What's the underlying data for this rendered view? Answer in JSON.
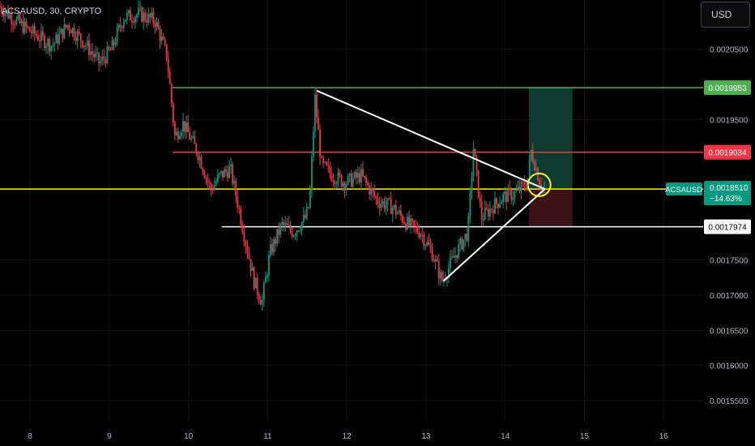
{
  "header": {
    "symbol_title": "ACSAUSD, 30, CRYPTO",
    "currency": "USD"
  },
  "chart_data": {
    "type": "candlestick",
    "symbol": "ACSAUSD",
    "interval": "30",
    "exchange": "CRYPTO",
    "ylim": [
      0.00152,
      0.00212
    ],
    "y_ticks": [
      "0.0020500",
      "0.0019500",
      "0.0017500",
      "0.0017000",
      "0.0016500",
      "0.0016000",
      "0.0015500"
    ],
    "x_ticks": [
      "8",
      "9",
      "10",
      "11",
      "12",
      "13",
      "14",
      "15",
      "16"
    ],
    "x_tick_values": [
      8,
      9,
      10,
      11,
      12,
      13,
      14,
      15,
      16
    ],
    "xlim": [
      7.62,
      16.5
    ],
    "price_path": [
      [
        7.62,
        0.002112
      ],
      [
        7.9,
        0.002085
      ],
      [
        8.1,
        0.00207
      ],
      [
        8.3,
        0.002055
      ],
      [
        8.5,
        0.002085
      ],
      [
        8.7,
        0.00206
      ],
      [
        8.9,
        0.00203
      ],
      [
        9.05,
        0.00205
      ],
      [
        9.2,
        0.002095
      ],
      [
        9.4,
        0.0021
      ],
      [
        9.6,
        0.00209
      ],
      [
        9.75,
        0.00204
      ],
      [
        9.85,
        0.001925
      ],
      [
        9.95,
        0.001945
      ],
      [
        10.15,
        0.0019
      ],
      [
        10.3,
        0.00185
      ],
      [
        10.42,
        0.00187
      ],
      [
        10.55,
        0.00188
      ],
      [
        10.7,
        0.0018
      ],
      [
        10.85,
        0.00172
      ],
      [
        10.95,
        0.00169
      ],
      [
        11.05,
        0.00176
      ],
      [
        11.2,
        0.0018
      ],
      [
        11.35,
        0.00179
      ],
      [
        11.5,
        0.00181
      ],
      [
        11.55,
        0.00183
      ],
      [
        11.62,
        0.00198
      ],
      [
        11.7,
        0.001885
      ],
      [
        11.85,
        0.00187
      ],
      [
        12.0,
        0.00186
      ],
      [
        12.2,
        0.00187
      ],
      [
        12.4,
        0.001835
      ],
      [
        12.6,
        0.001825
      ],
      [
        12.8,
        0.0018
      ],
      [
        12.95,
        0.00179
      ],
      [
        13.1,
        0.00176
      ],
      [
        13.22,
        0.00172
      ],
      [
        13.4,
        0.00176
      ],
      [
        13.55,
        0.00179
      ],
      [
        13.62,
        0.00191
      ],
      [
        13.72,
        0.00181
      ],
      [
        13.9,
        0.00183
      ],
      [
        14.0,
        0.00184
      ],
      [
        14.15,
        0.001845
      ],
      [
        14.3,
        0.00186
      ],
      [
        14.35,
        0.001905
      ],
      [
        14.45,
        0.001865
      ],
      [
        14.5,
        0.001851
      ]
    ],
    "annotations": {
      "horizontal_lines": [
        {
          "price": 0.0019953,
          "label": "0.0019953",
          "color": "#4caf50",
          "x_start": 9.8
        },
        {
          "price": 0.0019034,
          "label": "0.0019034",
          "color": "#f23645",
          "x_start": 9.8
        },
        {
          "price": 0.001851,
          "label": "0.0018510",
          "color": "#ffeb3b",
          "x_start": 7.62
        },
        {
          "price": 0.0017974,
          "label": "0.0017974",
          "color": "#ffffff",
          "x_start": 10.42
        }
      ],
      "trendlines": [
        {
          "from": [
            11.62,
            0.001991
          ],
          "to": [
            14.5,
            0.001851
          ],
          "color": "#ffffff"
        },
        {
          "from": [
            13.22,
            0.00172
          ],
          "to": [
            14.5,
            0.001851
          ],
          "color": "#ffffff"
        }
      ],
      "circle": {
        "x": 14.43,
        "price": 0.001857,
        "color": "#ffeb3b"
      },
      "position_box": {
        "x_start": 14.3,
        "x_end": 14.85,
        "entry": 0.001851,
        "target": 0.0019953,
        "stop": 0.0017974,
        "profit_color": "#0d3b30",
        "loss_color": "#3d1215"
      }
    },
    "last_price": {
      "symbol": "ACSAUSD",
      "value": "0.0018510",
      "change": "−14.63%",
      "color": "#089981"
    }
  }
}
